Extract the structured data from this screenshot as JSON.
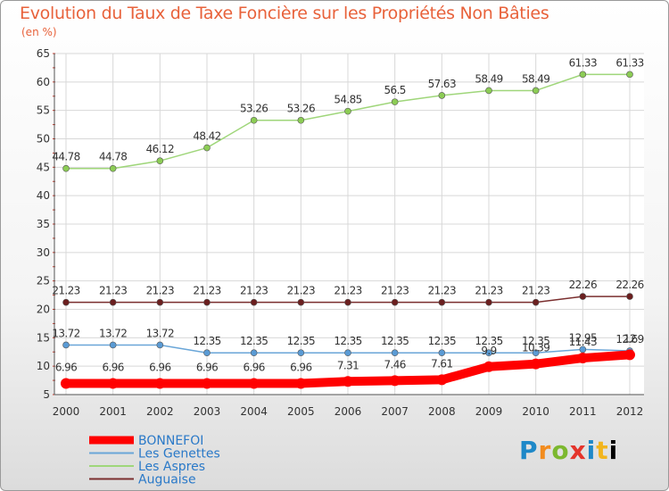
{
  "chart_data": {
    "type": "line",
    "title": "Evolution du Taux de Taxe Foncière sur les Propriétés Non Bâties",
    "ylabel": "(en %)",
    "xlabel": "",
    "ylim": [
      5,
      65
    ],
    "yticks": [
      5,
      10,
      15,
      20,
      25,
      30,
      35,
      40,
      45,
      50,
      55,
      60,
      65
    ],
    "categories": [
      "2000",
      "2001",
      "2002",
      "2003",
      "2004",
      "2005",
      "2006",
      "2007",
      "2008",
      "2009",
      "2010",
      "2011",
      "2012"
    ],
    "series": [
      {
        "name": "BONNEFOI",
        "color": "#ff0000",
        "values": [
          6.96,
          6.96,
          6.96,
          6.96,
          6.96,
          6.96,
          7.31,
          7.46,
          7.61,
          9.9,
          10.39,
          11.43,
          12
        ],
        "labels": [
          "6.96",
          "6.96",
          "6.96",
          "6.96",
          "6.96",
          "6.96",
          "7.31",
          "7.46",
          "7.61",
          "9.9",
          "10.39",
          "11.43",
          "12"
        ]
      },
      {
        "name": "Les Genettes",
        "color": "#6aa6d8",
        "values": [
          13.72,
          13.72,
          13.72,
          12.35,
          12.35,
          12.35,
          12.35,
          12.35,
          12.35,
          12.35,
          12.35,
          12.95,
          12.69
        ],
        "labels": [
          "13.72",
          "13.72",
          "13.72",
          "12.35",
          "12.35",
          "12.35",
          "12.35",
          "12.35",
          "12.35",
          "12.35",
          "12.35",
          "12.95",
          "12.69"
        ]
      },
      {
        "name": "Les Aspres",
        "color": "#9fd67a",
        "values": [
          44.78,
          44.78,
          46.12,
          48.42,
          53.26,
          53.26,
          54.85,
          56.5,
          57.63,
          58.49,
          58.49,
          61.33,
          61.33
        ],
        "labels": [
          "44.78",
          "44.78",
          "46.12",
          "48.42",
          "53.26",
          "53.26",
          "54.85",
          "56.5",
          "57.63",
          "58.49",
          "58.49",
          "61.33",
          "61.33"
        ]
      },
      {
        "name": "Auguaise",
        "color": "#7a2e2e",
        "values": [
          21.23,
          21.23,
          21.23,
          21.23,
          21.23,
          21.23,
          21.23,
          21.23,
          21.23,
          21.23,
          21.23,
          22.26,
          22.26
        ],
        "labels": [
          "21.23",
          "21.23",
          "21.23",
          "21.23",
          "21.23",
          "21.23",
          "21.23",
          "21.23",
          "21.23",
          "21.23",
          "21.23",
          "22.26",
          "22.26"
        ]
      }
    ],
    "legend_position": "bottom-left",
    "grid": true
  },
  "branding": {
    "logo_letters": [
      "P",
      "r",
      "o",
      "x",
      "i",
      "t",
      "i"
    ]
  }
}
